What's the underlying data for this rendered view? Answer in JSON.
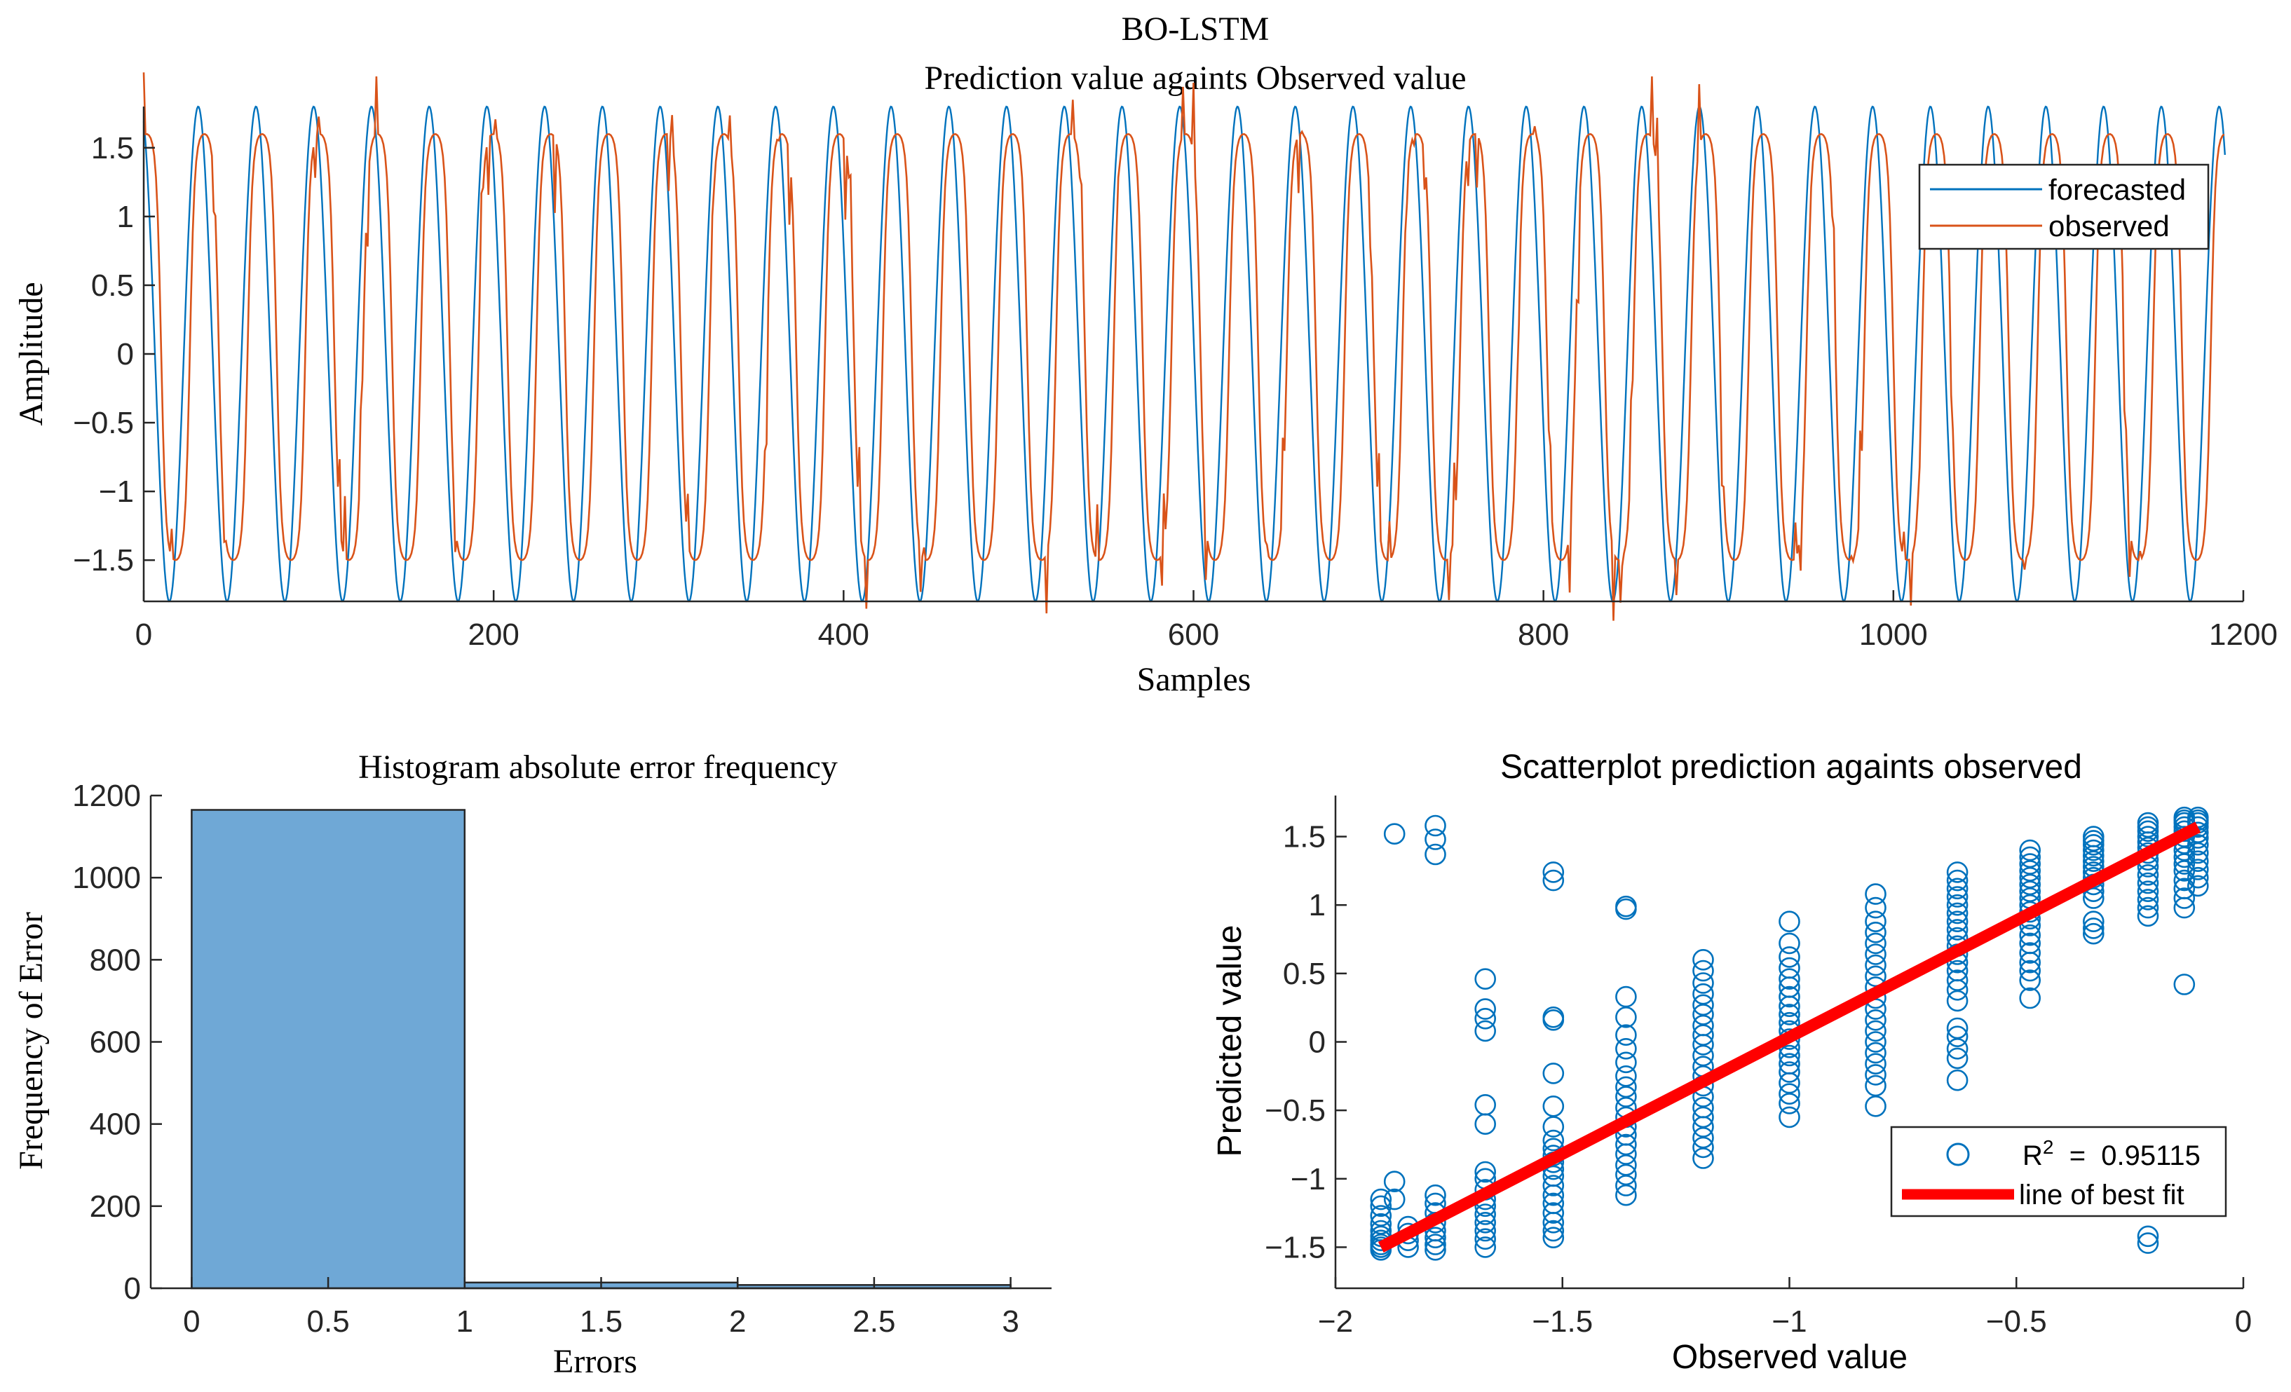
{
  "colors": {
    "forecasted": "#0072BD",
    "observed": "#D95319",
    "histogram_bar": "#6FA8D6",
    "scatter_marker": "#0072BD",
    "best_fit": "#FF0000",
    "axis": "#262626"
  },
  "chart_data": [
    {
      "id": "timeseries",
      "type": "line",
      "title": "BO-LSTM",
      "subtitle": "Prediction value againts Observed value",
      "xlabel": "Samples",
      "ylabel": "Amplitude",
      "xlim": [
        0,
        1200
      ],
      "ylim": [
        -1.8,
        1.8
      ],
      "xticks": [
        0,
        200,
        400,
        600,
        800,
        1000,
        1200
      ],
      "xtick_labels": [
        "0",
        "200",
        "400",
        "600",
        "800",
        "1000",
        "1200"
      ],
      "yticks": [
        -1.5,
        -1,
        -0.5,
        0,
        0.5,
        1,
        1.5
      ],
      "ytick_labels": [
        "−1.5",
        "−1",
        "−0.5",
        "0",
        "0.5",
        "1",
        "1.5"
      ],
      "legend_location": "top-right",
      "series": [
        {
          "name": "forecasted",
          "color": "#0072BD",
          "n_samples": 1190,
          "period_samples": 33,
          "amplitude": 1.8
        },
        {
          "name": "observed",
          "color": "#D95319",
          "n_samples": 1190,
          "period_samples": 33,
          "peak": 1.6,
          "trough": -1.5
        }
      ]
    },
    {
      "id": "histogram",
      "type": "bar",
      "title": "Histogram absolute error frequency",
      "xlabel": "Errors",
      "ylabel": "Frequency of Error",
      "xlim": [
        -0.15,
        3.15
      ],
      "ylim": [
        0,
        1200
      ],
      "xticks": [
        0,
        0.5,
        1,
        1.5,
        2,
        2.5,
        3
      ],
      "xtick_labels": [
        "0",
        "0.5",
        "1",
        "1.5",
        "2",
        "2.5",
        "3"
      ],
      "yticks": [
        0,
        200,
        400,
        600,
        800,
        1000,
        1200
      ],
      "ytick_labels": [
        "0",
        "200",
        "400",
        "600",
        "800",
        "1000",
        "1200"
      ],
      "bins": [
        {
          "from": 0,
          "to": 1,
          "count": 1165
        },
        {
          "from": 1,
          "to": 2,
          "count": 14
        },
        {
          "from": 2,
          "to": 3,
          "count": 8
        }
      ]
    },
    {
      "id": "scatter",
      "type": "scatter",
      "title": "Scatterplot prediction againts observed",
      "xlabel": "Observed value",
      "ylabel": "Predicted value",
      "xlim": [
        -2,
        0
      ],
      "ylim": [
        -1.8,
        1.8
      ],
      "xticks": [
        -2,
        -1.5,
        -1,
        -0.5,
        0
      ],
      "xtick_labels": [
        "−2",
        "−1.5",
        "−1",
        "−0.5",
        "0"
      ],
      "yticks": [
        -1.5,
        -1,
        -0.5,
        0,
        0.5,
        1,
        1.5
      ],
      "ytick_labels": [
        "−1.5",
        "−1",
        "−0.5",
        "0",
        "0.5",
        "1",
        "1.5"
      ],
      "legend_location": "bottom-right",
      "r2_label_base": "R",
      "r2_label_sup": "2",
      "r2_label_rest": "  =  0.95115",
      "fit_label": "line of best fit",
      "fit_line": {
        "x": [
          -1.9,
          -0.1
        ],
        "y": [
          -1.5,
          1.57
        ]
      },
      "groups": [
        {
          "x": -1.9,
          "y": [
            -1.52,
            -1.5,
            -1.48,
            -1.45,
            -1.42,
            -1.38,
            -1.33,
            -1.27,
            -1.2,
            -1.15
          ]
        },
        {
          "x": -1.87,
          "y": [
            1.52,
            -1.02,
            -1.15
          ]
        },
        {
          "x": -1.84,
          "y": [
            -1.5,
            -1.45,
            -1.4,
            -1.35
          ]
        },
        {
          "x": -1.78,
          "y": [
            1.58,
            1.48,
            1.37,
            -1.52,
            -1.48,
            -1.43,
            -1.38,
            -1.32,
            -1.25,
            -1.18,
            -1.12
          ]
        },
        {
          "x": -1.67,
          "y": [
            0.46,
            0.24,
            0.17,
            0.08,
            -0.46,
            -0.6,
            -0.95,
            -1.0,
            -1.08,
            -1.15,
            -1.2,
            -1.26,
            -1.32,
            -1.38,
            -1.44,
            -1.5
          ]
        },
        {
          "x": -1.52,
          "y": [
            1.24,
            1.18,
            0.18,
            0.16,
            -0.23,
            -0.47,
            -0.62,
            -0.72,
            -0.78,
            -0.83,
            -0.88,
            -0.93,
            -0.98,
            -1.05,
            -1.12,
            -1.18,
            -1.25,
            -1.32,
            -1.38,
            -1.43
          ]
        },
        {
          "x": -1.36,
          "y": [
            0.99,
            0.97,
            0.33,
            0.18,
            0.05,
            -0.05,
            -0.15,
            -0.25,
            -0.33,
            -0.4,
            -0.48,
            -0.55,
            -0.62,
            -0.68,
            -0.75,
            -0.82,
            -0.9,
            -0.97,
            -1.05,
            -1.12
          ]
        },
        {
          "x": -1.19,
          "y": [
            0.6,
            0.52,
            0.43,
            0.35,
            0.27,
            0.2,
            0.12,
            0.05,
            -0.02,
            -0.1,
            -0.18,
            -0.25,
            -0.32,
            -0.4,
            -0.48,
            -0.55,
            -0.62,
            -0.7,
            -0.77,
            -0.85
          ]
        },
        {
          "x": -1.0,
          "y": [
            0.88,
            0.72,
            0.62,
            0.54,
            0.46,
            0.4,
            0.33,
            0.26,
            0.2,
            0.14,
            0.08,
            0.02,
            -0.04,
            -0.1,
            -0.16,
            -0.22,
            -0.3,
            -0.38,
            -0.45,
            -0.55
          ]
        },
        {
          "x": -0.81,
          "y": [
            1.08,
            0.98,
            0.88,
            0.8,
            0.72,
            0.64,
            0.56,
            0.48,
            0.4,
            0.32,
            0.24,
            0.16,
            0.08,
            0.0,
            -0.08,
            -0.16,
            -0.24,
            -0.32,
            -0.47
          ]
        },
        {
          "x": -0.63,
          "y": [
            1.24,
            1.18,
            1.12,
            1.06,
            1.0,
            0.94,
            0.88,
            0.82,
            0.76,
            0.7,
            0.64,
            0.58,
            0.52,
            0.45,
            0.38,
            0.3,
            0.1,
            0.04,
            -0.05,
            -0.12,
            -0.28
          ]
        },
        {
          "x": -0.47,
          "y": [
            1.4,
            1.35,
            1.3,
            1.25,
            1.2,
            1.15,
            1.1,
            1.05,
            1.0,
            0.95,
            0.9,
            0.85,
            0.78,
            0.72,
            0.65,
            0.58,
            0.52,
            0.45,
            0.32
          ]
        },
        {
          "x": -0.33,
          "y": [
            1.5,
            1.47,
            1.44,
            1.4,
            1.36,
            1.32,
            1.28,
            1.24,
            1.2,
            1.15,
            1.1,
            1.05,
            0.88,
            0.83,
            0.79
          ]
        },
        {
          "x": -0.21,
          "y": [
            1.6,
            1.57,
            1.54,
            1.5,
            1.46,
            1.42,
            1.38,
            1.33,
            1.28,
            1.22,
            1.16,
            1.1,
            1.04,
            0.98,
            0.92,
            -1.42,
            -1.47
          ]
        },
        {
          "x": -0.13,
          "y": [
            1.64,
            1.62,
            1.6,
            1.57,
            1.54,
            1.5,
            1.45,
            1.4,
            1.35,
            1.3,
            1.25,
            1.18,
            1.12,
            1.05,
            0.98,
            0.42
          ]
        },
        {
          "x": -0.1,
          "y": [
            1.64,
            1.62,
            1.6,
            1.57,
            1.53,
            1.49,
            1.44,
            1.38,
            1.32,
            1.26,
            1.2,
            1.14
          ]
        }
      ]
    }
  ]
}
